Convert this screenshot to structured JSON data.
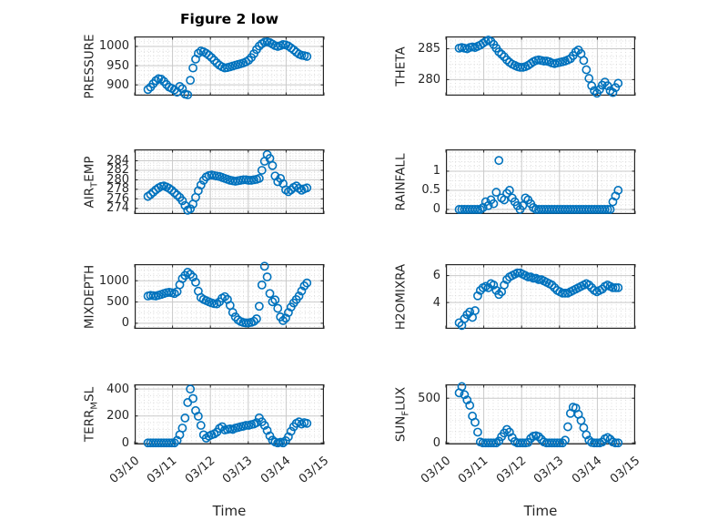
{
  "figure": {
    "title": "Figure 2 low",
    "xlabel": "Time",
    "background": "#ffffff"
  },
  "style": {
    "marker_color": "#0072BD",
    "axis_color": "#262626",
    "major_grid_color": "#c9c9c9",
    "minor_grid_color": "#d9d9d9",
    "text_color": "#262626"
  },
  "x_axis": {
    "lim": [
      0,
      5
    ],
    "tick_values": [
      0,
      1,
      2,
      3,
      4,
      5
    ],
    "tick_labels": [
      "03/10",
      "03/11",
      "03/12",
      "03/13",
      "03/14",
      "03/15"
    ],
    "minor_per_day": 8
  },
  "chart_data": [
    {
      "type": "scatter",
      "name": "PRESSURE",
      "row": 0,
      "col": 0,
      "ylabel": {
        "pre": "PRESSURE",
        "sub": "",
        "post": ""
      },
      "ylim": [
        872,
        1026
      ],
      "yticks": [
        900,
        950,
        1000
      ],
      "ytick_labels": [
        "900",
        "950",
        "1000"
      ],
      "t0": 0.35,
      "dt": 0.07,
      "values": [
        888,
        894,
        903,
        911,
        916,
        915,
        909,
        901,
        894,
        891,
        887,
        881,
        896,
        890,
        876,
        874,
        912,
        944,
        967,
        982,
        988,
        986,
        982,
        977,
        971,
        964,
        957,
        951,
        947,
        944,
        945,
        947,
        949,
        951,
        953,
        955,
        957,
        960,
        964,
        971,
        981,
        992,
        1001,
        1007,
        1011,
        1012,
        1010,
        1006,
        1002,
        1000,
        1002,
        1005,
        1004,
        1001,
        996,
        991,
        985,
        980,
        977,
        976,
        974
      ]
    },
    {
      "type": "scatter",
      "name": "THETA",
      "row": 0,
      "col": 1,
      "ylabel": {
        "pre": "THETA",
        "sub": "",
        "post": ""
      },
      "ylim": [
        277.4,
        287.0
      ],
      "yticks": [
        280,
        285
      ],
      "ytick_labels": [
        "280",
        "285"
      ],
      "t0": 0.35,
      "dt": 0.07,
      "values": [
        285.1,
        285.2,
        285.1,
        285.0,
        285.2,
        285.3,
        285.2,
        285.4,
        285.6,
        285.9,
        286.2,
        286.4,
        286.2,
        285.7,
        285.1,
        284.5,
        284.1,
        283.7,
        283.2,
        282.8,
        282.5,
        282.3,
        282.1,
        282.0,
        282.0,
        282.1,
        282.3,
        282.6,
        282.9,
        283.1,
        283.2,
        283.1,
        283.0,
        283.0,
        282.9,
        282.7,
        282.6,
        282.7,
        282.8,
        282.9,
        283.0,
        283.2,
        283.4,
        283.9,
        284.5,
        284.8,
        284.2,
        283.1,
        281.6,
        280.2,
        279.0,
        278.2,
        277.8,
        278.4,
        279.1,
        279.6,
        279.0,
        278.2,
        277.9,
        278.7,
        279.4
      ]
    },
    {
      "type": "scatter",
      "name": "AIR_TEMP",
      "row": 1,
      "col": 0,
      "ylabel": {
        "pre": "AIR",
        "sub": "T",
        "post": "EMP"
      },
      "ylim": [
        272.8,
        286.4
      ],
      "yticks": [
        274,
        276,
        278,
        280,
        282,
        284
      ],
      "ytick_labels": [
        "274",
        "276",
        "278",
        "280",
        "282",
        "284"
      ],
      "t0": 0.35,
      "dt": 0.07,
      "values": [
        276.5,
        276.9,
        277.4,
        277.9,
        278.3,
        278.6,
        278.7,
        278.5,
        278.2,
        277.8,
        277.3,
        276.8,
        276.3,
        275.6,
        274.6,
        273.6,
        273.9,
        274.9,
        276.3,
        277.7,
        278.9,
        279.9,
        280.6,
        280.9,
        281.0,
        280.9,
        280.8,
        280.7,
        280.5,
        280.3,
        280.1,
        279.9,
        279.8,
        279.7,
        279.8,
        279.9,
        280.0,
        280.0,
        279.9,
        279.9,
        280.0,
        280.1,
        280.3,
        282.0,
        283.9,
        285.3,
        284.5,
        283.0,
        280.8,
        279.6,
        280.3,
        279.2,
        277.9,
        277.5,
        277.9,
        278.4,
        278.7,
        278.2,
        277.8,
        278.1,
        278.3
      ]
    },
    {
      "type": "scatter",
      "name": "RAINFALL",
      "row": 1,
      "col": 1,
      "ylabel": {
        "pre": "RAINFALL",
        "sub": "",
        "post": ""
      },
      "ylim": [
        -0.12,
        1.57
      ],
      "yticks": [
        0,
        0.5,
        1
      ],
      "ytick_labels": [
        "0",
        "0.5",
        "1"
      ],
      "t0": 0.35,
      "dt": 0.07,
      "values": [
        0,
        0,
        0,
        0,
        0,
        0,
        0,
        0,
        0,
        0.05,
        0.2,
        0.1,
        0.25,
        0.15,
        0.45,
        1.28,
        0.3,
        0.25,
        0.42,
        0.5,
        0.3,
        0.2,
        0.1,
        0,
        0.1,
        0.3,
        0.25,
        0.15,
        0.05,
        0,
        0,
        0,
        0,
        0,
        0,
        0,
        0,
        0,
        0,
        0,
        0,
        0,
        0,
        0,
        0,
        0,
        0,
        0,
        0,
        0,
        0,
        0,
        0,
        0,
        0,
        0,
        0,
        0,
        0.2,
        0.35,
        0.5
      ]
    },
    {
      "type": "scatter",
      "name": "MIXDEPTH",
      "row": 2,
      "col": 0,
      "ylabel": {
        "pre": "MIXDEPTH",
        "sub": "",
        "post": ""
      },
      "ylim": [
        -130,
        1390
      ],
      "yticks": [
        0,
        500,
        1000
      ],
      "ytick_labels": [
        "0",
        "500",
        "1000"
      ],
      "t0": 0.35,
      "dt": 0.07,
      "values": [
        640,
        655,
        648,
        642,
        658,
        678,
        700,
        718,
        728,
        718,
        700,
        742,
        905,
        1050,
        1125,
        1200,
        1150,
        1085,
        965,
        755,
        605,
        560,
        532,
        505,
        480,
        462,
        455,
        505,
        590,
        625,
        560,
        420,
        255,
        150,
        80,
        40,
        18,
        8,
        10,
        22,
        45,
        105,
        400,
        900,
        1340,
        1090,
        700,
        505,
        548,
        350,
        150,
        62,
        122,
        252,
        380,
        478,
        558,
        640,
        758,
        878,
        948
      ]
    },
    {
      "type": "scatter",
      "name": "H2OMIXRA",
      "row": 2,
      "col": 1,
      "ylabel": {
        "pre": "H2OMIXRA",
        "sub": "",
        "post": ""
      },
      "ylim": [
        2.05,
        6.85
      ],
      "yticks": [
        4,
        6
      ],
      "ytick_labels": [
        "4",
        "6"
      ],
      "t0": 0.35,
      "dt": 0.07,
      "values": [
        2.5,
        2.3,
        2.8,
        3.1,
        3.3,
        2.9,
        3.4,
        4.5,
        4.9,
        5.1,
        5.2,
        5.1,
        5.4,
        5.3,
        4.9,
        4.6,
        4.8,
        5.3,
        5.7,
        5.9,
        6.0,
        6.1,
        6.2,
        6.2,
        6.1,
        6.0,
        5.9,
        5.9,
        5.8,
        5.8,
        5.7,
        5.7,
        5.6,
        5.5,
        5.4,
        5.3,
        5.1,
        4.9,
        4.8,
        4.7,
        4.7,
        4.7,
        4.8,
        4.9,
        5.0,
        5.1,
        5.2,
        5.3,
        5.4,
        5.3,
        5.1,
        4.9,
        4.8,
        4.9,
        5.0,
        5.2,
        5.3,
        5.2,
        5.1,
        5.1,
        5.1
      ]
    },
    {
      "type": "scatter",
      "name": "TERR_MSL",
      "row": 3,
      "col": 0,
      "ylabel": {
        "pre": "TERR",
        "sub": "M",
        "post": "SL"
      },
      "ylim": [
        -12,
        435
      ],
      "yticks": [
        0,
        200,
        400
      ],
      "ytick_labels": [
        "0",
        "200",
        "400"
      ],
      "t0": 0.35,
      "dt": 0.07,
      "values": [
        0,
        0,
        0,
        0,
        0,
        0,
        0,
        0,
        0,
        0,
        0,
        18,
        60,
        110,
        185,
        300,
        400,
        330,
        240,
        198,
        130,
        60,
        35,
        50,
        60,
        66,
        80,
        108,
        120,
        96,
        100,
        104,
        100,
        110,
        114,
        120,
        124,
        130,
        130,
        136,
        140,
        150,
        186,
        156,
        130,
        92,
        52,
        20,
        6,
        0,
        5,
        0,
        16,
        45,
        86,
        120,
        145,
        156,
        140,
        150,
        145
      ]
    },
    {
      "type": "scatter",
      "name": "SUN_FLUX",
      "row": 3,
      "col": 1,
      "ylabel": {
        "pre": "SUN",
        "sub": "F",
        "post": "LUX"
      },
      "ylim": [
        -18,
        655
      ],
      "yticks": [
        0,
        500
      ],
      "ytick_labels": [
        "0",
        "500"
      ],
      "t0": 0.35,
      "dt": 0.07,
      "values": [
        560,
        630,
        540,
        480,
        420,
        300,
        230,
        120,
        10,
        0,
        0,
        0,
        0,
        0,
        0,
        20,
        70,
        110,
        150,
        120,
        60,
        15,
        0,
        0,
        0,
        0,
        5,
        50,
        75,
        80,
        70,
        40,
        10,
        0,
        0,
        0,
        0,
        0,
        0,
        0,
        30,
        180,
        330,
        400,
        390,
        320,
        250,
        170,
        90,
        30,
        5,
        0,
        0,
        0,
        10,
        45,
        60,
        40,
        10,
        0,
        0
      ]
    }
  ]
}
